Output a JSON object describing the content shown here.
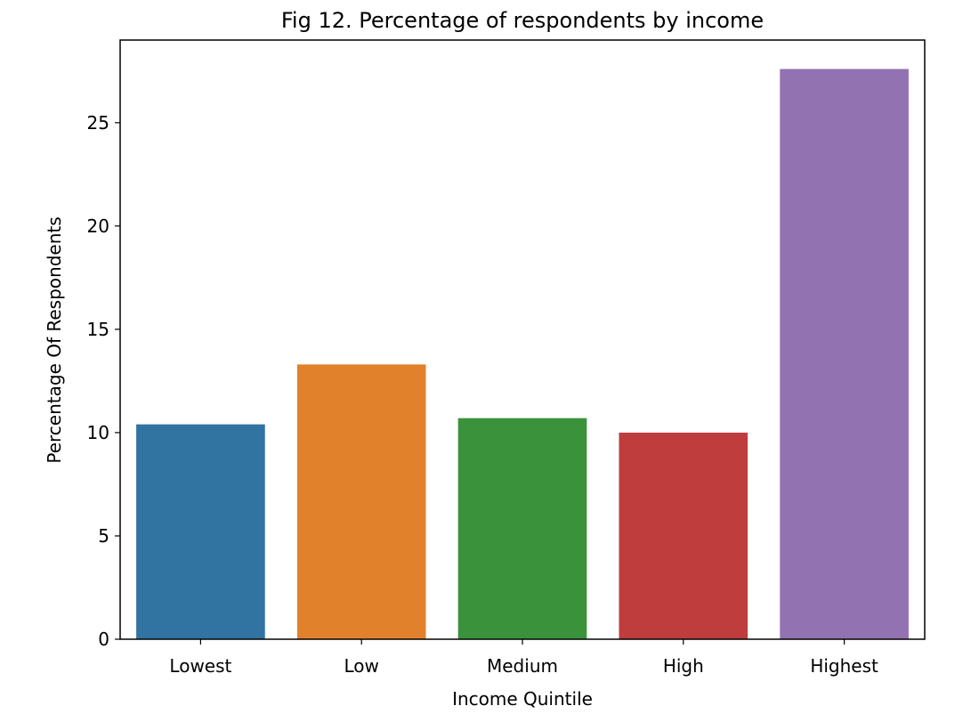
{
  "chart_data": {
    "type": "bar",
    "title": "Fig 12. Percentage of respondents by income",
    "xlabel": "Income Quintile",
    "ylabel": "Percentage Of Respondents",
    "categories": [
      "Lowest",
      "Low",
      "Medium",
      "High",
      "Highest"
    ],
    "values": [
      10.4,
      13.3,
      10.7,
      10.0,
      27.6
    ],
    "colors": [
      "#3274a1",
      "#e1812c",
      "#3a923a",
      "#c03d3e",
      "#9372b2"
    ],
    "ylim": [
      0,
      29
    ],
    "yticks": [
      0,
      5,
      10,
      15,
      20,
      25
    ],
    "grid": false,
    "legend": "none"
  }
}
